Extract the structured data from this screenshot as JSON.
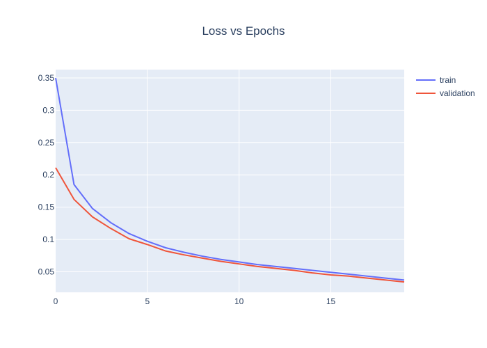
{
  "chart_data": {
    "type": "line",
    "title": "Loss vs Epochs",
    "xlabel": "",
    "ylabel": "",
    "xlim": [
      0,
      19
    ],
    "ylim": [
      0.018,
      0.363
    ],
    "x_ticks": [
      0,
      5,
      10,
      15
    ],
    "y_ticks": [
      0.05,
      0.1,
      0.15,
      0.2,
      0.25,
      0.3,
      0.35
    ],
    "x_tick_labels": [
      "0",
      "5",
      "10",
      "15"
    ],
    "y_tick_labels": [
      "0.05",
      "0.1",
      "0.15",
      "0.2",
      "0.25",
      "0.3",
      "0.35"
    ],
    "grid": true,
    "legend_position": "top-right",
    "x": [
      0,
      1,
      2,
      3,
      4,
      5,
      6,
      7,
      8,
      9,
      10,
      11,
      12,
      13,
      14,
      15,
      16,
      17,
      18,
      19
    ],
    "series": [
      {
        "name": "train",
        "color": "#636efa",
        "values": [
          0.35,
          0.185,
          0.148,
          0.126,
          0.109,
          0.097,
          0.087,
          0.08,
          0.074,
          0.069,
          0.065,
          0.061,
          0.058,
          0.055,
          0.052,
          0.049,
          0.046,
          0.043,
          0.04,
          0.037
        ]
      },
      {
        "name": "validation",
        "color": "#ef553b",
        "values": [
          0.211,
          0.162,
          0.135,
          0.117,
          0.101,
          0.092,
          0.082,
          0.076,
          0.071,
          0.066,
          0.062,
          0.058,
          0.055,
          0.052,
          0.048,
          0.045,
          0.043,
          0.04,
          0.037,
          0.034
        ]
      }
    ]
  }
}
